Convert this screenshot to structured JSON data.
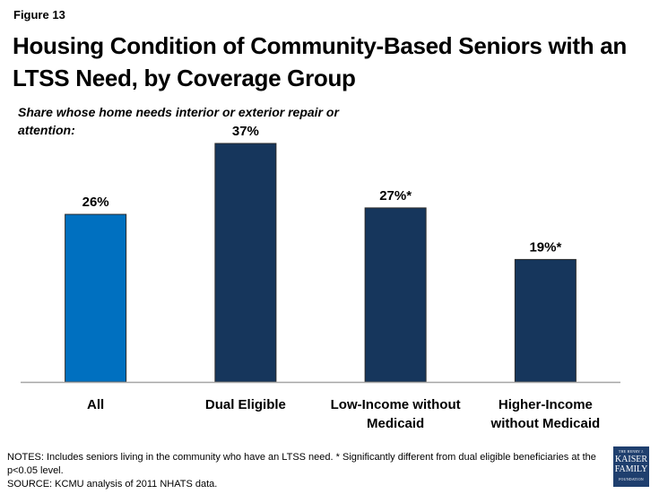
{
  "figure_label": "Figure 13",
  "title": "Housing Condition of Community-Based Seniors with an LTSS Need, by Coverage Group",
  "subtitle": "Share whose home needs interior or exterior repair or attention:",
  "notes": {
    "line1": "NOTES: Includes seniors living in the community who have an LTSS need. * Significantly different from dual eligible beneficiaries at the p<0.05 level.",
    "line2": "SOURCE: KCMU analysis of 2011 NHATS data."
  },
  "logo": {
    "line1": "THE HENRY J.",
    "line2": "KAISER",
    "line3": "FAMILY",
    "line4": "FOUNDATION"
  },
  "chart_data": {
    "type": "bar",
    "title": "Housing Condition of Community-Based Seniors with an LTSS Need, by Coverage Group",
    "subtitle": "Share whose home needs interior or exterior repair or attention:",
    "xlabel": "",
    "ylabel": "",
    "ylim": [
      0,
      37
    ],
    "grid": false,
    "legend": "none",
    "categories": [
      "All",
      "Dual Eligible",
      "Low-Income without Medicaid",
      "Higher-Income without Medicaid"
    ],
    "category_lines": [
      [
        "All"
      ],
      [
        "Dual Eligible"
      ],
      [
        "Low-Income without",
        "Medicaid"
      ],
      [
        "Higher-Income",
        "without Medicaid"
      ]
    ],
    "values": [
      26,
      37,
      27,
      19
    ],
    "data_labels": [
      "26%",
      "37%",
      "27%*",
      "19%*"
    ],
    "colors": [
      "#0070c0",
      "#16365c",
      "#16365c",
      "#16365c"
    ]
  }
}
